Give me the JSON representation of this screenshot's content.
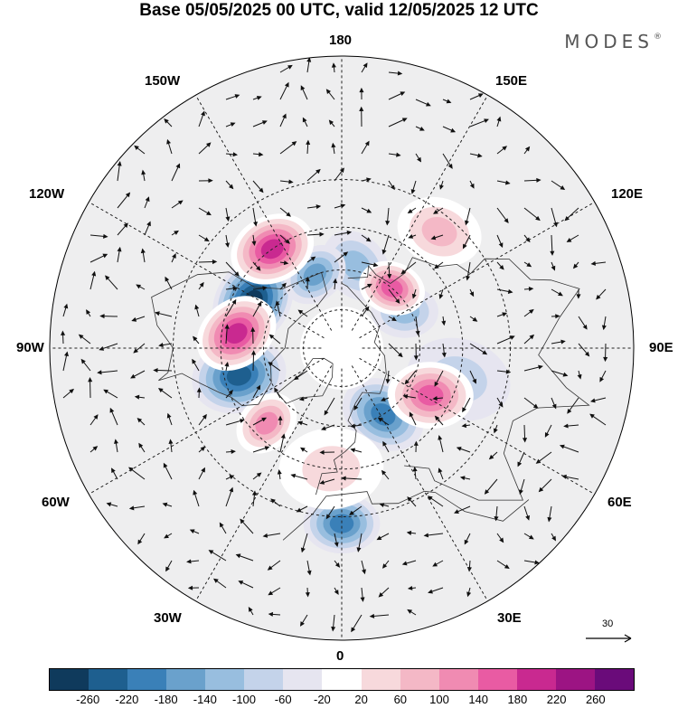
{
  "title": "Base 05/05/2025 00 UTC, valid 12/05/2025 12 UTC",
  "brand": "MODES",
  "brand_mark": "®",
  "longitude_labels": {
    "top": "180",
    "bottom": "0",
    "left": "90W",
    "right": "90E",
    "upper_left_1": "150W",
    "upper_left_2": "120W",
    "upper_right_1": "150E",
    "upper_right_2": "120E",
    "lower_left_1": "60W",
    "lower_left_2": "30W",
    "lower_right_1": "60E",
    "lower_right_2": "30E"
  },
  "reference_vector": {
    "value": "30",
    "icon": "arrow-right-icon"
  },
  "colorbar": {
    "colors": [
      "#0f3a5c",
      "#1e5f8f",
      "#3a80b8",
      "#6aa1cc",
      "#98bedf",
      "#c4d3ea",
      "#e6e5f0",
      "#ffffff",
      "#f7d9dc",
      "#f4b8c6",
      "#f08bb2",
      "#e95ba3",
      "#c92990",
      "#9c1483",
      "#6a0b7a"
    ],
    "ticks": [
      "-260",
      "-220",
      "-180",
      "-140",
      "-100",
      "-60",
      "-20",
      "20",
      "60",
      "100",
      "140",
      "180",
      "220",
      "260"
    ]
  },
  "anomaly_blobs": [
    {
      "lon": -118,
      "lat": 52,
      "level": -240,
      "size": 9
    },
    {
      "lon": -75,
      "lat": 50,
      "level": -200,
      "size": 9
    },
    {
      "lon": 0,
      "lat": 28,
      "level": -140,
      "size": 7
    },
    {
      "lon": 32,
      "lat": 60,
      "level": -160,
      "size": 8
    },
    {
      "lon": 120,
      "lat": 62,
      "level": -80,
      "size": 6
    },
    {
      "lon": 170,
      "lat": 58,
      "level": -60,
      "size": 7
    },
    {
      "lon": -160,
      "lat": 60,
      "level": -100,
      "size": 6
    },
    {
      "lon": 75,
      "lat": 45,
      "level": -40,
      "size": 10
    },
    {
      "lon": -145,
      "lat": 45,
      "level": 180,
      "size": 8
    },
    {
      "lon": -98,
      "lat": 50,
      "level": 200,
      "size": 8
    },
    {
      "lon": 62,
      "lat": 52,
      "level": 160,
      "size": 8
    },
    {
      "lon": 140,
      "lat": 60,
      "level": 150,
      "size": 6
    },
    {
      "lon": -45,
      "lat": 50,
      "level": 120,
      "size": 6
    },
    {
      "lon": 140,
      "lat": 35,
      "level": 60,
      "size": 8
    },
    {
      "lon": -5,
      "lat": 45,
      "level": 40,
      "size": 10
    }
  ]
}
